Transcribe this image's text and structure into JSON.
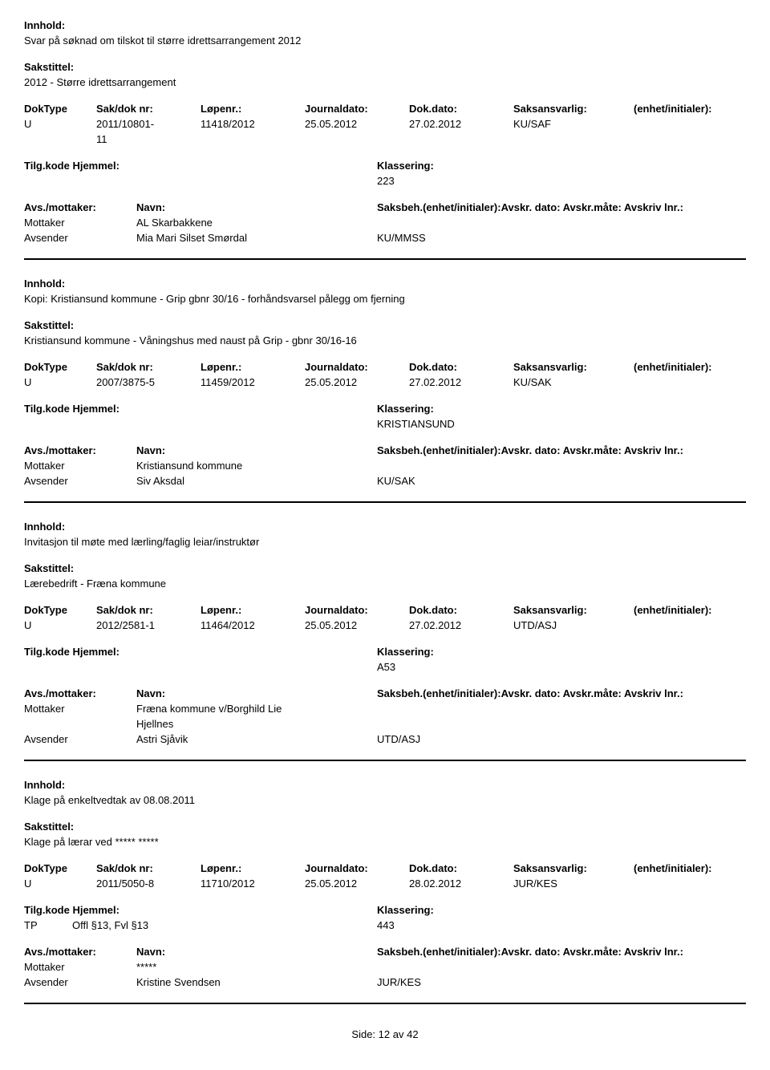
{
  "labels": {
    "innhold": "Innhold:",
    "sakstittel": "Sakstittel:",
    "doktype": "DokType",
    "sak_dok_nr": "Sak/dok nr:",
    "lopenr": "Løpenr.:",
    "journaldato": "Journaldato:",
    "dokdato": "Dok.dato:",
    "saksansvarlig": "Saksansvarlig:",
    "enhet_init": "(enhet/initialer):",
    "tilg_kode": "Tilg.kode",
    "hjemmel": "Hjemmel:",
    "klassering": "Klassering:",
    "avs_mottaker": "Avs./mottaker:",
    "navn": "Navn:",
    "saksbeh_full": "Saksbeh.(enhet/initialer):Avskr. dato: Avskr.måte: Avskriv lnr.:",
    "mottaker": "Mottaker",
    "avsender": "Avsender",
    "side": "Side:",
    "av": "av"
  },
  "footer": {
    "page": "12",
    "total": "42"
  },
  "entries": [
    {
      "innhold": "Svar på søknad om tilskot til større idrettsarrangement 2012",
      "sakstittel": "2012 - Større idrettsarrangement",
      "doktype": "U",
      "sak_dok_nr": "2011/10801-11",
      "sak_dok_nr_line1": "2011/10801-",
      "sak_dok_nr_line2": "11",
      "lopenr": "11418/2012",
      "journaldato": "25.05.2012",
      "dokdato": "27.02.2012",
      "saksansvarlig": "KU/SAF",
      "tilg_kode": "",
      "hjemmel": "",
      "klassering": "223",
      "mottaker": "AL Skarbakkene",
      "avsender": "Mia Mari Silset Smørdal",
      "avsender_unit": "KU/MMSS"
    },
    {
      "innhold": "Kopi: Kristiansund kommune - Grip gbnr 30/16 - forhåndsvarsel pålegg om fjerning",
      "sakstittel": "Kristiansund kommune - Våningshus med naust på Grip - gbnr 30/16-16",
      "doktype": "U",
      "sak_dok_nr": "2007/3875-5",
      "lopenr": "11459/2012",
      "journaldato": "25.05.2012",
      "dokdato": "27.02.2012",
      "saksansvarlig": "KU/SAK",
      "tilg_kode": "",
      "hjemmel": "",
      "klassering": "KRISTIANSUND",
      "mottaker": "Kristiansund kommune",
      "avsender": "Siv Aksdal",
      "avsender_unit": "KU/SAK"
    },
    {
      "innhold": "Invitasjon til møte med lærling/faglig leiar/instruktør",
      "sakstittel": "Lærebedrift - Fræna kommune",
      "doktype": "U",
      "sak_dok_nr": "2012/2581-1",
      "lopenr": "11464/2012",
      "journaldato": "25.05.2012",
      "dokdato": "27.02.2012",
      "saksansvarlig": "UTD/ASJ",
      "tilg_kode": "",
      "hjemmel": "",
      "klassering": "A53",
      "mottaker": "Fræna kommune v/Borghild Lie Hjellnes",
      "mottaker_line1": "Fræna kommune v/Borghild Lie",
      "mottaker_line2": "Hjellnes",
      "avsender": "Astri Sjåvik",
      "avsender_unit": "UTD/ASJ"
    },
    {
      "innhold": "Klage på enkeltvedtak av 08.08.2011",
      "sakstittel": "Klage på lærar ved  ***** *****",
      "doktype": "U",
      "sak_dok_nr": "2011/5050-8",
      "lopenr": "11710/2012",
      "journaldato": "25.05.2012",
      "dokdato": "28.02.2012",
      "saksansvarlig": "JUR/KES",
      "tilg_kode": "TP",
      "hjemmel": "Offl §13, Fvl §13",
      "klassering": "443",
      "mottaker": "*****",
      "avsender": "Kristine Svendsen",
      "avsender_unit": "JUR/KES"
    }
  ]
}
